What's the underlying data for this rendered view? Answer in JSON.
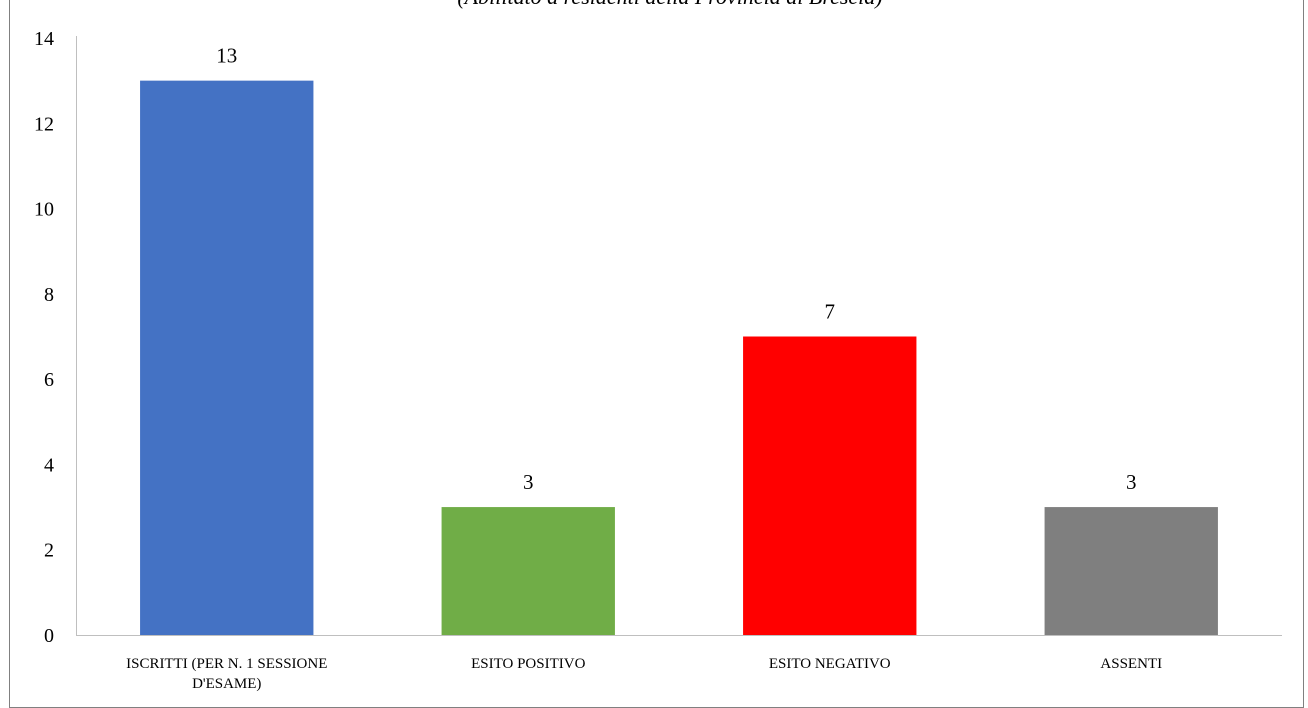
{
  "chart_data": {
    "type": "bar",
    "title": "(Abilitato a residenti della Provincia di Brescia)",
    "categories": [
      [
        "ISCRITTI (PER N. 1 SESSIONE",
        "D'ESAME)"
      ],
      [
        "ESITO POSITIVO"
      ],
      [
        "ESITO NEGATIVO"
      ],
      [
        "ASSENTI"
      ]
    ],
    "values": [
      13,
      3,
      7,
      3
    ],
    "colors": [
      "#4472c4",
      "#70ad47",
      "#ff0000",
      "#7f7f7f"
    ],
    "ylim": [
      0,
      14
    ],
    "yticks": [
      0,
      2,
      4,
      6,
      8,
      10,
      12,
      14
    ],
    "data_labels": true,
    "grid": false,
    "legend": "none"
  }
}
